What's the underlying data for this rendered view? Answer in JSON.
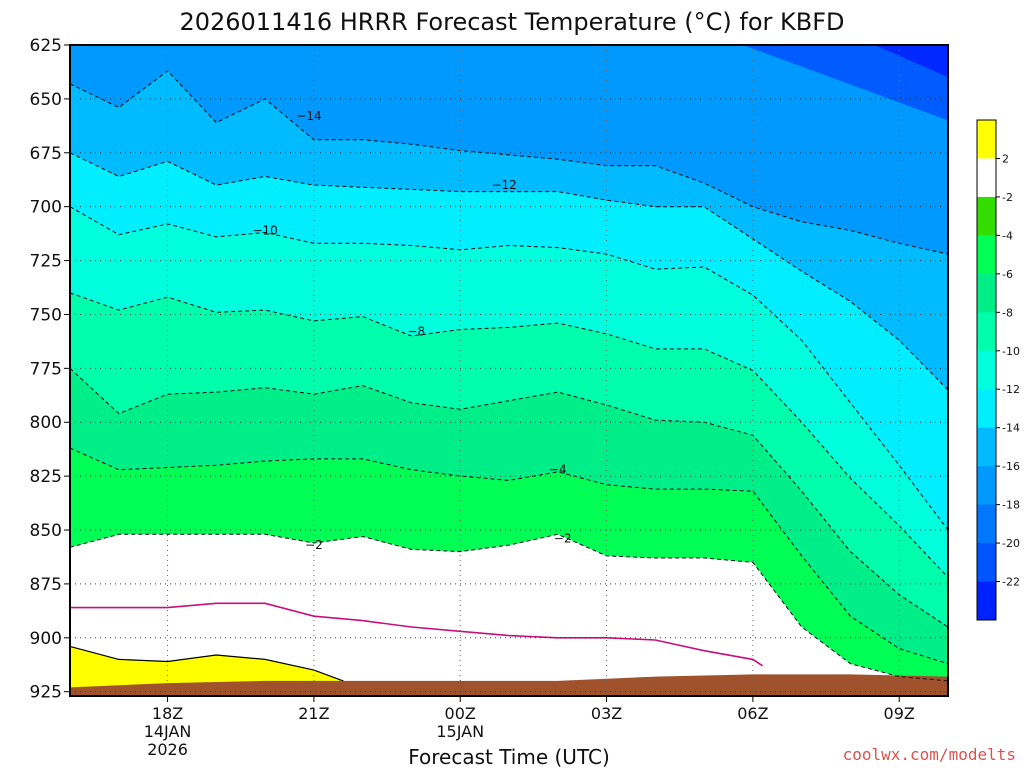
{
  "chart_data": {
    "type": "contour",
    "title": "2026011416 HRRR Forecast Temperature (°C) for KBFD",
    "xlabel": "Forecast Time (UTC)",
    "credit": "coolwx.com/modelts",
    "y_axis": {
      "label": "",
      "ticks": [
        625,
        650,
        675,
        700,
        725,
        750,
        775,
        800,
        825,
        850,
        875,
        900,
        925
      ],
      "range": [
        625,
        927
      ],
      "direction": "inverted"
    },
    "x_axis": {
      "ticks": [
        {
          "hour": 18,
          "label": "18Z",
          "sub1": "14JAN",
          "sub2": "2026"
        },
        {
          "hour": 21,
          "label": "21Z",
          "sub1": "",
          "sub2": ""
        },
        {
          "hour": 24,
          "label": "00Z",
          "sub1": "15JAN",
          "sub2": ""
        },
        {
          "hour": 27,
          "label": "03Z",
          "sub1": "",
          "sub2": ""
        },
        {
          "hour": 30,
          "label": "06Z",
          "sub1": "",
          "sub2": ""
        },
        {
          "hour": 33,
          "label": "09Z",
          "sub1": "",
          "sub2": ""
        }
      ],
      "range": [
        16,
        34
      ]
    },
    "grid": "dotted",
    "colorbar": {
      "labels": [
        "2",
        "-2",
        "-4",
        "-6",
        "-8",
        "-10",
        "-12",
        "-14",
        "-16",
        "-18",
        "-20",
        "-22"
      ],
      "colors": [
        "#ffff00",
        "#ffffff",
        "#33dd00",
        "#00ff55",
        "#00ee88",
        "#00ffaa",
        "#00ffdd",
        "#00eeff",
        "#00bbff",
        "#0099ff",
        "#0077ff",
        "#0055ff",
        "#0022ff"
      ]
    },
    "contour_labels": [
      {
        "text": "−14",
        "t": 20.9,
        "p": 658
      },
      {
        "text": "−12",
        "t": 24.9,
        "p": 690
      },
      {
        "text": "−10",
        "t": 20.0,
        "p": 711
      },
      {
        "text": "−8",
        "t": 23.1,
        "p": 758
      },
      {
        "text": "−4",
        "t": 26.0,
        "p": 822
      },
      {
        "text": "−2",
        "t": 21.0,
        "p": 857
      },
      {
        "text": "−2",
        "t": 26.1,
        "p": 854
      }
    ],
    "isotherms": [
      {
        "level": -14,
        "points": [
          [
            16,
            643
          ],
          [
            17,
            654
          ],
          [
            18,
            637
          ],
          [
            19,
            661
          ],
          [
            20,
            650
          ],
          [
            21,
            669
          ],
          [
            22,
            669
          ],
          [
            23,
            671
          ],
          [
            24,
            674
          ],
          [
            25,
            676
          ],
          [
            26,
            678
          ],
          [
            27,
            681
          ],
          [
            28,
            681
          ],
          [
            29,
            689
          ],
          [
            30,
            700
          ],
          [
            31,
            707
          ],
          [
            32,
            711
          ],
          [
            33,
            717
          ],
          [
            34,
            722
          ]
        ]
      },
      {
        "level": -12,
        "points": [
          [
            16,
            675
          ],
          [
            17,
            686
          ],
          [
            18,
            679
          ],
          [
            19,
            690
          ],
          [
            20,
            686
          ],
          [
            21,
            690
          ],
          [
            22,
            691
          ],
          [
            23,
            692
          ],
          [
            24,
            693
          ],
          [
            25,
            693
          ],
          [
            26,
            693
          ],
          [
            27,
            697
          ],
          [
            28,
            700
          ],
          [
            29,
            700
          ],
          [
            30,
            715
          ],
          [
            31,
            730
          ],
          [
            32,
            744
          ],
          [
            33,
            762
          ],
          [
            34,
            785
          ]
        ]
      },
      {
        "level": -10,
        "points": [
          [
            16,
            700
          ],
          [
            17,
            713
          ],
          [
            18,
            708
          ],
          [
            19,
            714
          ],
          [
            20,
            712
          ],
          [
            21,
            717
          ],
          [
            22,
            717
          ],
          [
            23,
            718
          ],
          [
            24,
            720
          ],
          [
            25,
            718
          ],
          [
            26,
            719
          ],
          [
            27,
            722
          ],
          [
            28,
            729
          ],
          [
            29,
            728
          ],
          [
            30,
            741
          ],
          [
            31,
            762
          ],
          [
            32,
            791
          ],
          [
            33,
            820
          ],
          [
            34,
            850
          ]
        ]
      },
      {
        "level": -8,
        "points": [
          [
            16,
            740
          ],
          [
            17,
            748
          ],
          [
            18,
            742
          ],
          [
            19,
            749
          ],
          [
            20,
            748
          ],
          [
            21,
            753
          ],
          [
            22,
            751
          ],
          [
            23,
            760
          ],
          [
            24,
            757
          ],
          [
            25,
            756
          ],
          [
            26,
            754
          ],
          [
            27,
            759
          ],
          [
            28,
            766
          ],
          [
            29,
            766
          ],
          [
            30,
            776
          ],
          [
            31,
            800
          ],
          [
            32,
            826
          ],
          [
            33,
            848
          ],
          [
            34,
            872
          ]
        ]
      },
      {
        "level": -6,
        "points": [
          [
            16,
            775
          ],
          [
            17,
            796
          ],
          [
            18,
            787
          ],
          [
            19,
            786
          ],
          [
            20,
            784
          ],
          [
            21,
            787
          ],
          [
            22,
            783
          ],
          [
            23,
            791
          ],
          [
            24,
            794
          ],
          [
            25,
            790
          ],
          [
            26,
            786
          ],
          [
            27,
            792
          ],
          [
            28,
            799
          ],
          [
            29,
            800
          ],
          [
            30,
            806
          ],
          [
            31,
            832
          ],
          [
            32,
            860
          ],
          [
            33,
            880
          ],
          [
            34,
            895
          ]
        ]
      },
      {
        "level": -4,
        "points": [
          [
            16,
            812
          ],
          [
            17,
            822
          ],
          [
            18,
            821
          ],
          [
            19,
            820
          ],
          [
            20,
            818
          ],
          [
            21,
            817
          ],
          [
            22,
            817
          ],
          [
            23,
            822
          ],
          [
            24,
            825
          ],
          [
            25,
            827
          ],
          [
            26,
            823
          ],
          [
            27,
            829
          ],
          [
            28,
            831
          ],
          [
            29,
            831
          ],
          [
            30,
            832
          ],
          [
            31,
            862
          ],
          [
            32,
            890
          ],
          [
            33,
            905
          ],
          [
            34,
            912
          ]
        ]
      },
      {
        "level": -2,
        "points": [
          [
            16,
            858
          ],
          [
            17,
            852
          ],
          [
            18,
            852
          ],
          [
            19,
            852
          ],
          [
            20,
            852
          ],
          [
            21,
            856
          ],
          [
            22,
            853
          ],
          [
            23,
            859
          ],
          [
            24,
            860
          ],
          [
            25,
            857
          ],
          [
            26,
            852
          ],
          [
            27,
            862
          ],
          [
            28,
            863
          ],
          [
            29,
            863
          ],
          [
            30,
            865
          ],
          [
            31,
            895
          ],
          [
            32,
            912
          ],
          [
            33,
            918
          ],
          [
            34,
            920
          ]
        ]
      }
    ],
    "magenta_line": {
      "points": [
        [
          16,
          886
        ],
        [
          17,
          886
        ],
        [
          18,
          886
        ],
        [
          19,
          884
        ],
        [
          20,
          884
        ],
        [
          21,
          890
        ],
        [
          22,
          892
        ],
        [
          23,
          895
        ],
        [
          24,
          897
        ],
        [
          25,
          899
        ],
        [
          26,
          900
        ],
        [
          27,
          900
        ],
        [
          28,
          901
        ],
        [
          29,
          906
        ],
        [
          30,
          910
        ],
        [
          30.2,
          913
        ]
      ]
    },
    "yellow_region_top": {
      "points": [
        [
          16,
          904
        ],
        [
          17,
          910
        ],
        [
          18,
          911
        ],
        [
          19,
          908
        ],
        [
          20,
          910
        ],
        [
          21,
          915
        ],
        [
          21.6,
          920
        ]
      ]
    },
    "terrain_top": {
      "points": [
        [
          16,
          923
        ],
        [
          18,
          921
        ],
        [
          20,
          920
        ],
        [
          21,
          920
        ],
        [
          22,
          920
        ],
        [
          24,
          920
        ],
        [
          26,
          920
        ],
        [
          28,
          918
        ],
        [
          30,
          917
        ],
        [
          32,
          917
        ],
        [
          34,
          918
        ]
      ]
    }
  }
}
